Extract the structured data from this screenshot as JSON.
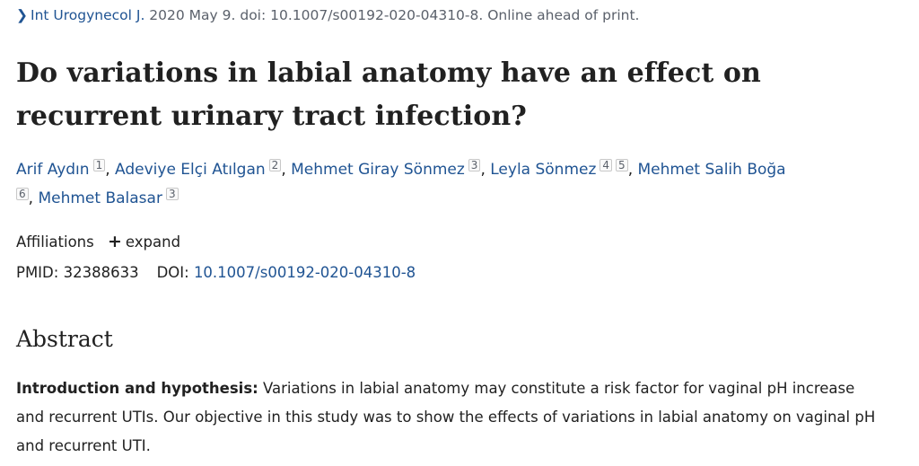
{
  "citation": {
    "journal": "Int Urogynecol J.",
    "details": " 2020 May 9. doi: 10.1007/s00192-020-04310-8. Online ahead of print."
  },
  "title": "Do variations in labial anatomy have an effect on recurrent urinary tract infection?",
  "authors": [
    {
      "name": "Arif Aydın",
      "affiliations": [
        "1"
      ]
    },
    {
      "name": "Adeviye Elçi Atılgan",
      "affiliations": [
        "2"
      ]
    },
    {
      "name": "Mehmet Giray Sönmez",
      "affiliations": [
        "3"
      ]
    },
    {
      "name": "Leyla Sönmez",
      "affiliations": [
        "4",
        "5"
      ]
    },
    {
      "name": "Mehmet Salih Boğa",
      "affiliations": [
        "6"
      ]
    },
    {
      "name": "Mehmet Balasar",
      "affiliations": [
        "3"
      ]
    }
  ],
  "affiliations": {
    "label": "Affiliations",
    "expand_icon": "+",
    "expand_label": "expand"
  },
  "ids": {
    "pmid_label": "PMID:",
    "pmid": "32388633",
    "doi_label": "DOI:",
    "doi": "10.1007/s00192-020-04310-8"
  },
  "abstract": {
    "heading": "Abstract",
    "section_label": "Introduction and hypothesis:",
    "text": "Variations in labial anatomy may constitute a risk factor for vaginal pH increase and recurrent UTIs. Our objective in this study was to show the effects of variations in labial anatomy on vaginal pH and recurrent UTI."
  },
  "colors": {
    "link": "#205493",
    "text": "#212121",
    "muted": "#5b616b"
  }
}
